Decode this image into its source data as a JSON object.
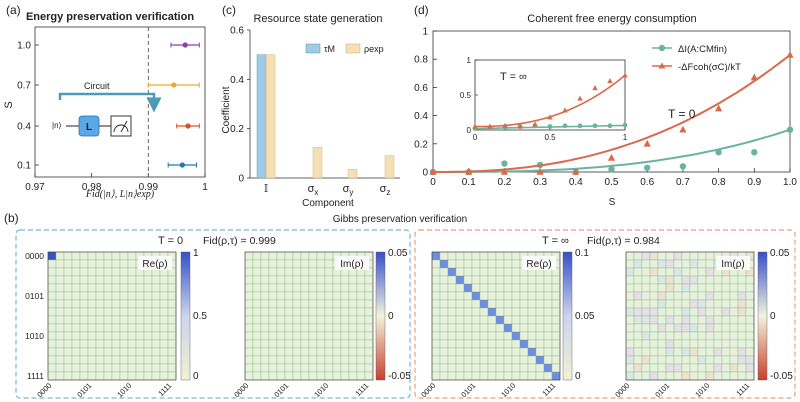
{
  "chart_data": [
    {
      "panel": "(a)",
      "type": "scatter",
      "title": "Energy preservation verification",
      "xlabel": "Fid(|n⟩, L|n⟩exp)",
      "ylabel": "S",
      "xlim": [
        0.97,
        1.0
      ],
      "xticks": [
        "0.97",
        "0.98",
        "0.99",
        "1"
      ],
      "yticks": [
        "0.1",
        "0.4",
        "0.7",
        "1.0"
      ],
      "reference_line_x": 0.99,
      "points": [
        {
          "s": 1.0,
          "fid": 0.9965,
          "err": 0.0025,
          "color": "#8e3fa8"
        },
        {
          "s": 0.7,
          "fid": 0.9945,
          "err": 0.0045,
          "color": "#f0a830"
        },
        {
          "s": 0.4,
          "fid": 0.997,
          "err": 0.002,
          "color": "#d9502a"
        },
        {
          "s": 0.1,
          "fid": 0.996,
          "err": 0.0025,
          "color": "#2077b4"
        }
      ],
      "inset": {
        "label": "Circuit",
        "input_state": "|n⟩",
        "gate": "L"
      }
    },
    {
      "panel": "(c)",
      "type": "bar",
      "title": "Resource state generation",
      "xlabel": "Component",
      "ylabel": "Coefficient",
      "ylim": [
        0,
        0.6
      ],
      "yticks": [
        "0",
        "0.2",
        "0.4",
        "0.6"
      ],
      "categories": [
        "𝕀",
        "σx",
        "σy",
        "σz"
      ],
      "series": [
        {
          "name": "τM",
          "color": "#9fcbe6",
          "values": [
            0.5,
            0.0,
            0.0,
            0.0
          ]
        },
        {
          "name": "ρexp",
          "color": "#f5dfb5",
          "values": [
            0.5,
            0.125,
            0.035,
            0.09
          ]
        }
      ]
    },
    {
      "panel": "(d)",
      "type": "line",
      "title": "Coherent free energy consumption",
      "xlabel": "S",
      "xlim": [
        0,
        1.0
      ],
      "ylim": [
        0,
        1.0
      ],
      "xticks": [
        "0",
        "0.1",
        "0.2",
        "0.3",
        "0.4",
        "0.5",
        "0.6",
        "0.7",
        "0.8",
        "0.9",
        "1.0"
      ],
      "yticks": [
        "0",
        "0.2",
        "0.4",
        "0.6",
        "0.8",
        "1"
      ],
      "annotation": "T = 0",
      "series": [
        {
          "name": "ΔI(A:CMfin)",
          "color": "#6bb3a0",
          "x": [
            0,
            0.1,
            0.2,
            0.3,
            0.4,
            0.5,
            0.6,
            0.7,
            0.8,
            0.9,
            1.0
          ],
          "values": [
            0.0,
            0.0,
            0.06,
            0.05,
            0.0,
            0.02,
            0.03,
            0.04,
            0.14,
            0.14,
            0.3
          ],
          "curve": "poly",
          "coef": 0.3,
          "pow": 2.8
        },
        {
          "name": "-ΔFcoh(σC)/kT",
          "color": "#d9694c",
          "x": [
            0,
            0.1,
            0.2,
            0.3,
            0.4,
            0.5,
            0.6,
            0.7,
            0.8,
            0.9,
            1.0
          ],
          "values": [
            0.0,
            0.0,
            0.0,
            0.0,
            0.0,
            0.1,
            0.2,
            0.3,
            0.45,
            0.67,
            0.83
          ],
          "curve": "poly",
          "coef": 0.83,
          "pow": 2.4
        }
      ],
      "inset": {
        "annotation": "T = ∞",
        "xlim": [
          0,
          1.0
        ],
        "ylim": [
          0,
          1.0
        ],
        "xticks": [
          "0",
          "0.5",
          "1"
        ],
        "yticks": [
          "0",
          "0.5",
          "1"
        ],
        "series": [
          {
            "name": "ΔI",
            "color": "#6bb3a0",
            "x": [
              0,
              0.1,
              0.2,
              0.3,
              0.4,
              0.5,
              0.6,
              0.7,
              0.8,
              0.9,
              1.0
            ],
            "values": [
              0.02,
              0.03,
              0.04,
              0.05,
              0.06,
              0.05,
              0.06,
              0.06,
              0.06,
              0.06,
              0.07
            ],
            "curve": "flat"
          },
          {
            "name": "ΔF",
            "color": "#d9694c",
            "x": [
              0,
              0.1,
              0.2,
              0.3,
              0.4,
              0.5,
              0.6,
              0.7,
              0.8,
              0.9,
              1.0
            ],
            "values": [
              0.05,
              0.05,
              0.06,
              0.05,
              0.08,
              0.18,
              0.28,
              0.45,
              0.6,
              0.7,
              0.78
            ],
            "curve": "poly",
            "coef": 0.78,
            "pow": 2.4
          }
        ]
      }
    },
    {
      "panel": "(b)",
      "type": "heatmap",
      "title": "Gibbs preservation verification",
      "row_tick_labels": [
        "0000",
        "0101",
        "1010",
        "1111"
      ],
      "col_tick_labels": [
        "0000",
        "0101",
        "1010",
        "1111"
      ],
      "groups": [
        {
          "condition": "T = 0",
          "fidelity": "Fid(ρ,τ) = 0.999",
          "border": "#7ab6cf",
          "maps": [
            {
              "label": "Re(ρ)",
              "colorbar_ticks": [
                "1",
                "0.5",
                "0"
              ],
              "pattern": "corner",
              "value": 1.0
            },
            {
              "label": "Im(ρ)",
              "colorbar_ticks": [
                "0.05",
                "0",
                "-0.05"
              ],
              "pattern": "none"
            }
          ]
        },
        {
          "condition": "T = ∞",
          "fidelity": "Fid(ρ,τ) = 0.984",
          "border": "#e8a07a",
          "maps": [
            {
              "label": "Re(ρ)",
              "colorbar_ticks": [
                "0.1",
                "0.05",
                "0"
              ],
              "pattern": "diagonal",
              "value": 0.0625
            },
            {
              "label": "Im(ρ)",
              "colorbar_ticks": [
                "0.05",
                "0",
                "-0.05"
              ],
              "pattern": "noise"
            }
          ]
        }
      ]
    }
  ]
}
